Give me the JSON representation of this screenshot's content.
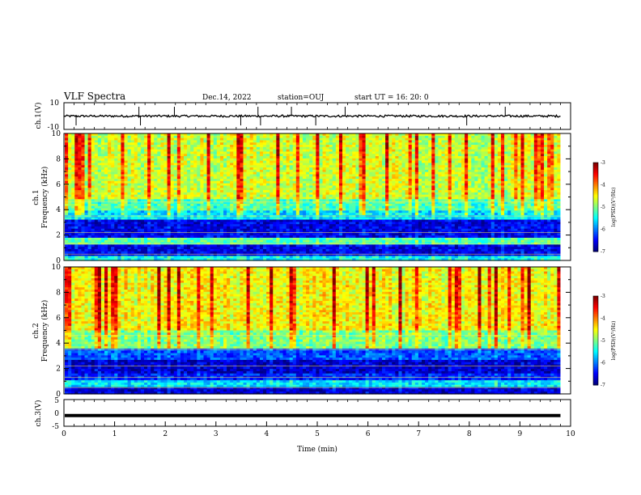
{
  "header": {
    "title": "VLF Spectra",
    "date": "Dec.14, 2022",
    "station": "station=OUJ",
    "start_time": "start UT =  16: 20: 0"
  },
  "chart_data": [
    {
      "type": "line",
      "id": "ch1-waveform",
      "ylabel": "ch.1(V)",
      "ylim": [
        -10,
        10
      ],
      "yticks": [
        "10",
        "-10"
      ],
      "xlim": [
        0,
        10
      ],
      "baseline": 0,
      "spikes_min": [
        0.24,
        1.48,
        1.51,
        2.18,
        3.49,
        3.83,
        3.88,
        4.49,
        4.97,
        5.55,
        7.95,
        8.71
      ],
      "color": "#000000"
    },
    {
      "type": "heatmap",
      "id": "ch1-spectrogram",
      "ylabel": "ch.1 Frequency (kHz)",
      "ylim": [
        0,
        10
      ],
      "yticks": [
        "0",
        "2",
        "4",
        "6",
        "8",
        "10"
      ],
      "xlim": [
        0,
        9.8
      ],
      "bands_khz": [
        {
          "from": 0,
          "to": 0.4,
          "level": -5.5
        },
        {
          "from": 0.4,
          "to": 1.2,
          "level": -6.6
        },
        {
          "from": 1.2,
          "to": 1.7,
          "level": -5.2
        },
        {
          "from": 1.7,
          "to": 3.3,
          "level": -6.6
        },
        {
          "from": 3.3,
          "to": 4.0,
          "level": -5.6
        },
        {
          "from": 4.0,
          "to": 4.8,
          "level": -5.2
        },
        {
          "from": 4.8,
          "to": 10,
          "level": -4.7
        }
      ],
      "colorbar": {
        "label": "log(PSD)(V²/Hz)",
        "range": [
          -7,
          -3
        ],
        "ticks": [
          "-3",
          "-4",
          "-5",
          "-6",
          "-7"
        ]
      }
    },
    {
      "type": "heatmap",
      "id": "ch2-spectrogram",
      "ylabel": "ch.2 Frequency (kHz)",
      "ylim": [
        0,
        10
      ],
      "yticks": [
        "0",
        "2",
        "4",
        "6",
        "8",
        "10"
      ],
      "xlim": [
        0,
        9.8
      ],
      "bands_khz": [
        {
          "from": 0,
          "to": 0.5,
          "level": -6.7
        },
        {
          "from": 0.5,
          "to": 1.1,
          "level": -5.6
        },
        {
          "from": 1.1,
          "to": 1.6,
          "level": -6.4
        },
        {
          "from": 1.6,
          "to": 2.7,
          "level": -6.7
        },
        {
          "from": 2.7,
          "to": 3.5,
          "level": -6.2
        },
        {
          "from": 3.5,
          "to": 5.0,
          "level": -5.0
        },
        {
          "from": 5.0,
          "to": 10,
          "level": -4.5
        }
      ],
      "colorbar": {
        "label": "log(PSD)(V²/Hz)",
        "range": [
          -7,
          -3
        ],
        "ticks": [
          "-3",
          "-4",
          "-5",
          "-6",
          "-7"
        ]
      }
    },
    {
      "type": "line",
      "id": "ch3-waveform",
      "ylabel": "ch.3(V)",
      "ylim": [
        -5,
        5
      ],
      "yticks": [
        "5",
        "0",
        "-5"
      ],
      "xlim": [
        0,
        10
      ],
      "xlabel": "Time (min)",
      "xticks": [
        "0",
        "1",
        "2",
        "3",
        "4",
        "5",
        "6",
        "7",
        "8",
        "9",
        "10"
      ],
      "level": -1.0,
      "color": "#000000"
    }
  ]
}
